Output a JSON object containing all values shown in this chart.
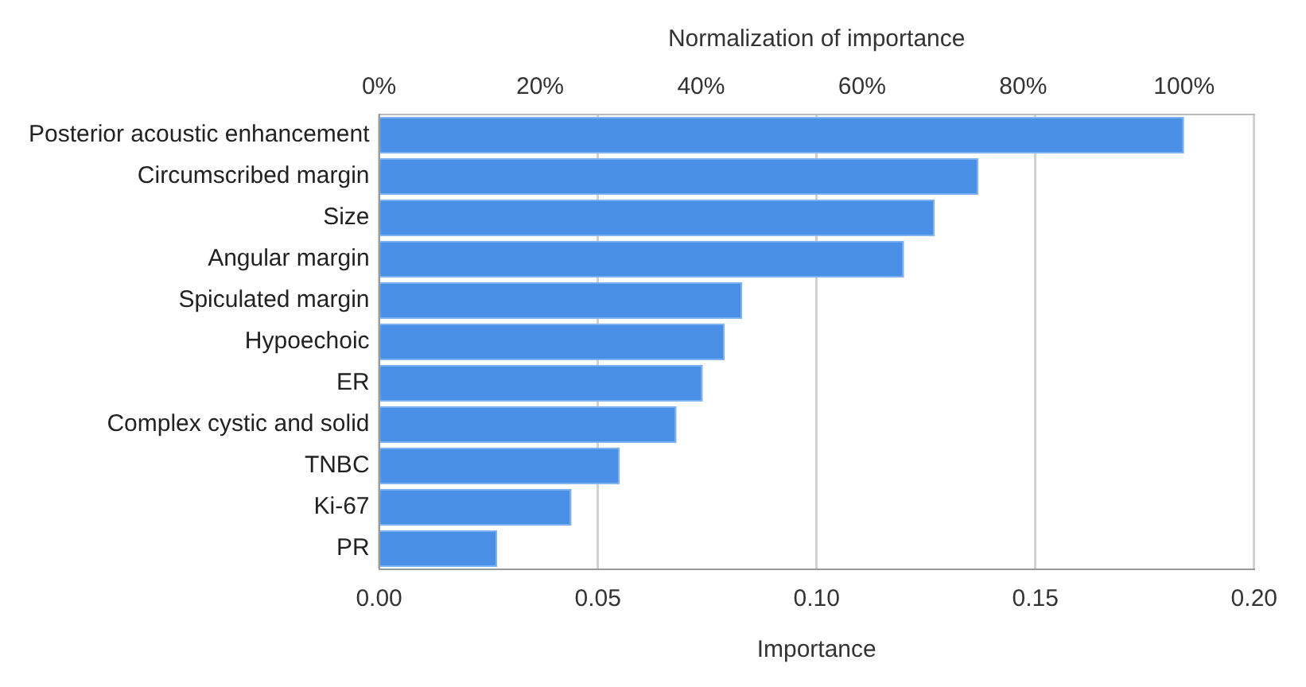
{
  "chart_data": {
    "type": "bar",
    "orientation": "horizontal",
    "xlabel": "Importance",
    "x2label": "Normalization of importance",
    "categories": [
      "Posterior acoustic enhancement",
      "Circumscribed margin",
      "Size",
      "Angular margin",
      "Spiculated margin",
      "Hypoechoic",
      "ER",
      "Complex cystic and solid",
      "TNBC",
      "Ki-67",
      "PR"
    ],
    "values": [
      0.184,
      0.137,
      0.127,
      0.12,
      0.083,
      0.079,
      0.074,
      0.068,
      0.055,
      0.044,
      0.027
    ],
    "color": "#4a8fe6",
    "xlim": [
      0,
      0.2
    ],
    "xticks": [
      {
        "value": 0,
        "label": "0.00"
      },
      {
        "value": 0.05,
        "label": "0.05"
      },
      {
        "value": 0.1,
        "label": "0.10"
      },
      {
        "value": 0.15,
        "label": "0.15"
      },
      {
        "value": 0.2,
        "label": "0.20"
      }
    ],
    "x2lim": [
      0,
      108.7
    ],
    "x2ticks": [
      {
        "value": 0,
        "label": "0%"
      },
      {
        "value": 20,
        "label": "20%"
      },
      {
        "value": 40,
        "label": "40%"
      },
      {
        "value": 60,
        "label": "60%"
      },
      {
        "value": 80,
        "label": "80%"
      },
      {
        "value": 100,
        "label": "100%"
      }
    ],
    "grid": "x",
    "legend": false
  }
}
